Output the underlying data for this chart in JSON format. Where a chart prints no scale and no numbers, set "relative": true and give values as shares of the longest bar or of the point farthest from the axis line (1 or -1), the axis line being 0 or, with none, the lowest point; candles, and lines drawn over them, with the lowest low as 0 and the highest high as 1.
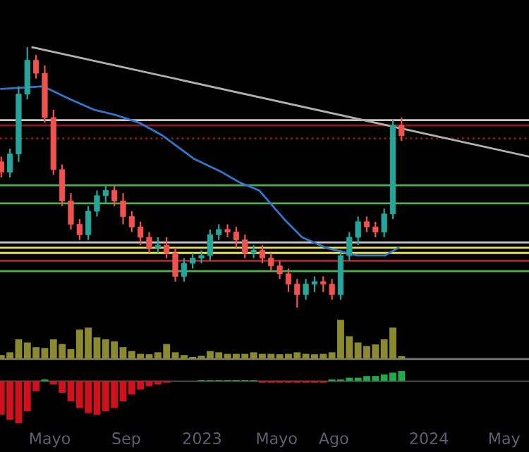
{
  "chart_data": [
    {
      "type": "candlestick",
      "relative": true,
      "tick_labels": false,
      "xlim": [
        "2022-02-10",
        "2024-06-10"
      ],
      "x": [
        "2022-02-12",
        "2022-02-26",
        "2022-03-12",
        "2022-03-26",
        "2022-04-09",
        "2022-04-23",
        "2022-05-07",
        "2022-05-21",
        "2022-06-04",
        "2022-06-18",
        "2022-07-02",
        "2022-07-16",
        "2022-07-30",
        "2022-08-13",
        "2022-08-27",
        "2022-09-10",
        "2022-09-24",
        "2022-10-08",
        "2022-10-22",
        "2022-11-05",
        "2022-11-19",
        "2022-12-03",
        "2022-12-17",
        "2022-12-31",
        "2023-01-14",
        "2023-01-28",
        "2023-02-11",
        "2023-02-25",
        "2023-03-11",
        "2023-03-25",
        "2023-04-08",
        "2023-04-22",
        "2023-05-06",
        "2023-05-20",
        "2023-06-03",
        "2023-06-17",
        "2023-07-01",
        "2023-07-15",
        "2023-07-29",
        "2023-08-12",
        "2023-08-26",
        "2023-09-09",
        "2023-09-23",
        "2023-10-07",
        "2023-10-21",
        "2023-11-04",
        "2023-11-18"
      ],
      "ohlc": [
        [
          0.56,
          0.58,
          0.5,
          0.52
        ],
        [
          0.52,
          0.61,
          0.5,
          0.59
        ],
        [
          0.59,
          0.85,
          0.56,
          0.82
        ],
        [
          0.82,
          1.0,
          0.8,
          0.95
        ],
        [
          0.95,
          0.97,
          0.88,
          0.9
        ],
        [
          0.9,
          0.93,
          0.71,
          0.73
        ],
        [
          0.73,
          0.76,
          0.51,
          0.53
        ],
        [
          0.53,
          0.55,
          0.39,
          0.41
        ],
        [
          0.41,
          0.44,
          0.3,
          0.32
        ],
        [
          0.32,
          0.34,
          0.26,
          0.28
        ],
        [
          0.28,
          0.39,
          0.26,
          0.37
        ],
        [
          0.37,
          0.45,
          0.35,
          0.43
        ],
        [
          0.43,
          0.47,
          0.4,
          0.45
        ],
        [
          0.45,
          0.47,
          0.39,
          0.41
        ],
        [
          0.41,
          0.44,
          0.32,
          0.35
        ],
        [
          0.35,
          0.37,
          0.29,
          0.31
        ],
        [
          0.31,
          0.33,
          0.24,
          0.27
        ],
        [
          0.27,
          0.29,
          0.21,
          0.23
        ],
        [
          0.23,
          0.27,
          0.21,
          0.24
        ],
        [
          0.24,
          0.27,
          0.19,
          0.21
        ],
        [
          0.21,
          0.23,
          0.1,
          0.12
        ],
        [
          0.12,
          0.19,
          0.1,
          0.17
        ],
        [
          0.17,
          0.21,
          0.15,
          0.19
        ],
        [
          0.19,
          0.22,
          0.17,
          0.2
        ],
        [
          0.2,
          0.3,
          0.18,
          0.28
        ],
        [
          0.28,
          0.32,
          0.26,
          0.3
        ],
        [
          0.3,
          0.32,
          0.27,
          0.29
        ],
        [
          0.29,
          0.31,
          0.23,
          0.26
        ],
        [
          0.26,
          0.28,
          0.19,
          0.21
        ],
        [
          0.21,
          0.24,
          0.19,
          0.22
        ],
        [
          0.22,
          0.24,
          0.17,
          0.19
        ],
        [
          0.19,
          0.21,
          0.14,
          0.16
        ],
        [
          0.16,
          0.18,
          0.11,
          0.13
        ],
        [
          0.13,
          0.15,
          0.06,
          0.09
        ],
        [
          0.09,
          0.11,
          0.0,
          0.05
        ],
        [
          0.05,
          0.11,
          0.03,
          0.09
        ],
        [
          0.09,
          0.12,
          0.06,
          0.1
        ],
        [
          0.1,
          0.12,
          0.06,
          0.09
        ],
        [
          0.09,
          0.11,
          0.03,
          0.05
        ],
        [
          0.05,
          0.22,
          0.03,
          0.2
        ],
        [
          0.2,
          0.29,
          0.18,
          0.27
        ],
        [
          0.27,
          0.35,
          0.24,
          0.33
        ],
        [
          0.33,
          0.35,
          0.29,
          0.31
        ],
        [
          0.31,
          0.33,
          0.27,
          0.29
        ],
        [
          0.29,
          0.38,
          0.27,
          0.36
        ],
        [
          0.36,
          0.72,
          0.34,
          0.7
        ],
        [
          0.7,
          0.73,
          0.64,
          0.66
        ]
      ],
      "colors": [
        "#ef5350",
        "#26a69a",
        "#26a69a",
        "#26a69a",
        "#ef5350",
        "#ef5350",
        "#ef5350",
        "#ef5350",
        "#ef5350",
        "#ef5350",
        "#26a69a",
        "#26a69a",
        "#26a69a",
        "#ef5350",
        "#ef5350",
        "#ef5350",
        "#ef5350",
        "#ef5350",
        "#26a69a",
        "#ef5350",
        "#ef5350",
        "#26a69a",
        "#26a69a",
        "#26a69a",
        "#26a69a",
        "#26a69a",
        "#ef5350",
        "#ef5350",
        "#ef5350",
        "#26a69a",
        "#ef5350",
        "#ef5350",
        "#ef5350",
        "#ef5350",
        "#ef5350",
        "#26a69a",
        "#26a69a",
        "#ef5350",
        "#ef5350",
        "#26a69a",
        "#26a69a",
        "#26a69a",
        "#ef5350",
        "#ef5350",
        "#26a69a",
        "#26a69a",
        "#ef5350"
      ],
      "series": [
        {
          "type": "line",
          "color": "#2e78d0",
          "x": [
            "2022-02-12",
            "2022-04-20",
            "2022-06-03",
            "2022-07-11",
            "2022-08-15",
            "2022-09-22",
            "2022-10-30",
            "2022-12-20",
            "2023-02-02",
            "2023-03-03",
            "2023-04-03",
            "2023-05-13",
            "2023-06-11",
            "2023-07-19",
            "2023-09-08",
            "2023-10-22",
            "2023-11-13"
          ],
          "values": [
            0.84,
            0.85,
            0.8,
            0.76,
            0.74,
            0.71,
            0.66,
            0.57,
            0.52,
            0.48,
            0.45,
            0.34,
            0.27,
            0.23,
            0.2,
            0.2,
            0.23
          ]
        },
        {
          "type": "line",
          "color": "#b0b0b0",
          "x": [
            "2022-04-03",
            "2024-06-10"
          ],
          "values": [
            1.0,
            0.58
          ]
        }
      ],
      "ref_lines": [
        {
          "axis": "y",
          "value": 0.72,
          "color": "#c8c8c8"
        },
        {
          "axis": "y",
          "value": 0.7,
          "color": "#8b1a1a"
        },
        {
          "axis": "y",
          "value": 0.65,
          "color": "#8b1a1a",
          "line_style": "dotted"
        },
        {
          "axis": "y",
          "value": 0.47,
          "color": "#4caf50"
        },
        {
          "axis": "y",
          "value": 0.4,
          "color": "#4caf50"
        },
        {
          "axis": "y",
          "value": 0.25,
          "color": "#c8c8c8"
        },
        {
          "axis": "y",
          "value": 0.23,
          "color": "#e8e04a"
        },
        {
          "axis": "y",
          "value": 0.21,
          "color": "#e8e04a"
        },
        {
          "axis": "y",
          "value": 0.18,
          "color": "#b22222"
        },
        {
          "axis": "y",
          "value": 0.14,
          "color": "#4caf50"
        }
      ]
    },
    {
      "type": "bar",
      "relative": true,
      "tick_labels": false,
      "xlim": [
        "2022-02-10",
        "2024-06-10"
      ],
      "color": "#8c8a2e",
      "x": [
        "2022-02-12",
        "2022-02-26",
        "2022-03-12",
        "2022-03-26",
        "2022-04-09",
        "2022-04-23",
        "2022-05-07",
        "2022-05-21",
        "2022-06-04",
        "2022-06-18",
        "2022-07-02",
        "2022-07-16",
        "2022-07-30",
        "2022-08-13",
        "2022-08-27",
        "2022-09-10",
        "2022-09-24",
        "2022-10-08",
        "2022-10-22",
        "2022-11-05",
        "2022-11-19",
        "2022-12-03",
        "2022-12-17",
        "2022-12-31",
        "2023-01-14",
        "2023-01-28",
        "2023-02-11",
        "2023-02-25",
        "2023-03-11",
        "2023-03-25",
        "2023-04-08",
        "2023-04-22",
        "2023-05-06",
        "2023-05-20",
        "2023-06-03",
        "2023-06-17",
        "2023-07-01",
        "2023-07-15",
        "2023-07-29",
        "2023-08-12",
        "2023-08-26",
        "2023-09-09",
        "2023-09-23",
        "2023-10-07",
        "2023-10-21",
        "2023-11-04",
        "2023-11-18"
      ],
      "values": [
        0.1,
        0.17,
        0.5,
        0.42,
        0.3,
        0.28,
        0.5,
        0.38,
        0.25,
        0.75,
        0.8,
        0.55,
        0.5,
        0.45,
        0.3,
        0.2,
        0.13,
        0.12,
        0.17,
        0.38,
        0.17,
        0.1,
        0.05,
        0.08,
        0.2,
        0.17,
        0.13,
        0.13,
        0.13,
        0.17,
        0.13,
        0.13,
        0.12,
        0.13,
        0.17,
        0.13,
        0.12,
        0.13,
        0.17,
        1.0,
        0.58,
        0.42,
        0.33,
        0.37,
        0.5,
        0.8,
        0.07
      ]
    },
    {
      "type": "bar",
      "relative": true,
      "tick_labels": "x",
      "xlim": [
        "2022-02-10",
        "2024-06-10"
      ],
      "xticks": [
        {
          "value": "2022-05-01",
          "label": "Mayo"
        },
        {
          "value": "2022-09-01",
          "label": "Sep"
        },
        {
          "value": "2023-01-01",
          "label": "2023"
        },
        {
          "value": "2023-05-01",
          "label": "Mayo"
        },
        {
          "value": "2023-08-01",
          "label": "Ago"
        },
        {
          "value": "2024-01-01",
          "label": "2024"
        },
        {
          "value": "2024-05-01",
          "label": "May"
        }
      ],
      "x": [
        "2022-02-12",
        "2022-02-26",
        "2022-03-12",
        "2022-03-26",
        "2022-04-09",
        "2022-04-23",
        "2022-05-07",
        "2022-05-21",
        "2022-06-04",
        "2022-06-18",
        "2022-07-02",
        "2022-07-16",
        "2022-07-30",
        "2022-08-13",
        "2022-08-27",
        "2022-09-10",
        "2022-09-24",
        "2022-10-08",
        "2022-10-22",
        "2022-11-05",
        "2022-11-19",
        "2022-12-03",
        "2022-12-17",
        "2022-12-31",
        "2023-01-14",
        "2023-01-28",
        "2023-02-11",
        "2023-02-25",
        "2023-03-11",
        "2023-03-25",
        "2023-04-08",
        "2023-04-22",
        "2023-05-06",
        "2023-05-20",
        "2023-06-03",
        "2023-06-17",
        "2023-07-01",
        "2023-07-15",
        "2023-07-29",
        "2023-08-12",
        "2023-08-26",
        "2023-09-09",
        "2023-09-23",
        "2023-10-07",
        "2023-10-21",
        "2023-11-04",
        "2023-11-18"
      ],
      "values": [
        -0.8,
        -0.92,
        -1.0,
        -0.72,
        -0.24,
        0.04,
        -0.08,
        -0.28,
        -0.48,
        -0.64,
        -0.76,
        -0.8,
        -0.72,
        -0.64,
        -0.48,
        -0.32,
        -0.2,
        -0.12,
        -0.08,
        -0.04,
        0,
        0,
        0,
        0.02,
        0.02,
        0.02,
        0.02,
        0.02,
        0.02,
        0.02,
        -0.04,
        -0.04,
        -0.04,
        -0.04,
        -0.04,
        -0.04,
        -0.04,
        -0.04,
        0.04,
        0.04,
        0.08,
        0.08,
        0.12,
        0.12,
        0.16,
        0.2,
        0.24
      ],
      "colors": [
        "#d0111c",
        "#d0111c",
        "#d0111c",
        "#d0111c",
        "#d0111c",
        "#22a84a",
        "#d0111c",
        "#d0111c",
        "#d0111c",
        "#d0111c",
        "#d0111c",
        "#d0111c",
        "#d0111c",
        "#d0111c",
        "#d0111c",
        "#d0111c",
        "#d0111c",
        "#d0111c",
        "#d0111c",
        "#d0111c",
        "#888888",
        "#888888",
        "#888888",
        "#22a84a",
        "#22a84a",
        "#22a84a",
        "#22a84a",
        "#22a84a",
        "#22a84a",
        "#22a84a",
        "#d0111c",
        "#d0111c",
        "#d0111c",
        "#d0111c",
        "#d0111c",
        "#d0111c",
        "#d0111c",
        "#d0111c",
        "#22a84a",
        "#22a84a",
        "#22a84a",
        "#22a84a",
        "#22a84a",
        "#22a84a",
        "#22a84a",
        "#22a84a",
        "#22a84a"
      ]
    }
  ]
}
